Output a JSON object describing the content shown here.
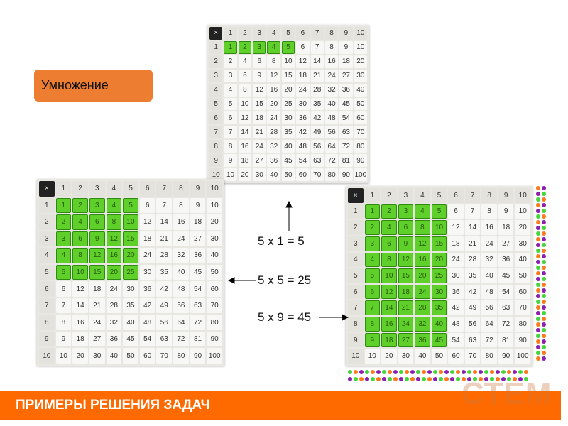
{
  "label": "Умножение",
  "banner": "ПРИМЕРЫ РЕШЕНИЯ ЗАДАЧ",
  "logo": "СТЕМ",
  "equations": [
    "5 x 1 = 5",
    "5 x 5 = 25",
    "5 x 9 = 45"
  ],
  "grid": {
    "corner": "×",
    "header": [
      "1",
      "2",
      "3",
      "4",
      "5",
      "6",
      "7",
      "8",
      "9",
      "10"
    ],
    "rows": [
      [
        "1",
        "2",
        "3",
        "4",
        "5",
        "6",
        "7",
        "8",
        "9",
        "10"
      ],
      [
        "2",
        "4",
        "6",
        "8",
        "10",
        "12",
        "14",
        "16",
        "18",
        "20"
      ],
      [
        "3",
        "6",
        "9",
        "12",
        "15",
        "18",
        "21",
        "24",
        "27",
        "30"
      ],
      [
        "4",
        "8",
        "12",
        "16",
        "20",
        "24",
        "28",
        "32",
        "36",
        "40"
      ],
      [
        "5",
        "10",
        "15",
        "20",
        "25",
        "30",
        "35",
        "40",
        "45",
        "50"
      ],
      [
        "6",
        "12",
        "18",
        "24",
        "30",
        "36",
        "42",
        "48",
        "54",
        "60"
      ],
      [
        "7",
        "14",
        "21",
        "28",
        "35",
        "42",
        "49",
        "56",
        "63",
        "70"
      ],
      [
        "8",
        "16",
        "24",
        "32",
        "40",
        "48",
        "56",
        "64",
        "72",
        "80"
      ],
      [
        "9",
        "18",
        "27",
        "36",
        "45",
        "54",
        "63",
        "72",
        "81",
        "90"
      ],
      [
        "10",
        "20",
        "30",
        "40",
        "50",
        "60",
        "70",
        "80",
        "90",
        "100"
      ]
    ]
  },
  "grids": [
    {
      "name": "grid-5x1",
      "highlight_rows": 1,
      "highlight_cols": 5
    },
    {
      "name": "grid-5x5",
      "highlight_rows": 5,
      "highlight_cols": 5
    },
    {
      "name": "grid-5x9",
      "highlight_rows": 9,
      "highlight_cols": 5
    }
  ],
  "colors": {
    "accent": "#ed7d31",
    "banner": "#ff6a00",
    "block": "#5fd02a",
    "dots": [
      "#ff7a1a",
      "#8e1fb0",
      "#44d63a"
    ]
  }
}
